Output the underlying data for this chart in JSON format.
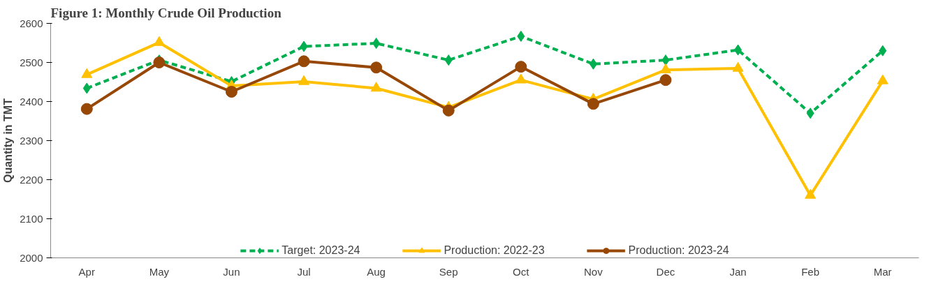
{
  "chart_data": {
    "type": "line",
    "title": "Figure 1: Monthly Crude Oil Production",
    "ylabel": "Quantity in TMT",
    "categories": [
      "Apr",
      "May",
      "Jun",
      "Jul",
      "Aug",
      "Sep",
      "Oct",
      "Nov",
      "Dec",
      "Jan",
      "Feb",
      "Mar"
    ],
    "series": [
      {
        "name": "Target: 2023-24",
        "color": "#00b050",
        "marker": "diamond",
        "line_style": "dashed",
        "values": [
          2434,
          2506,
          2451,
          2541,
          2549,
          2506,
          2567,
          2496,
          2506,
          2532,
          2370,
          2530
        ]
      },
      {
        "name": "Production: 2022-23",
        "color": "#ffc000",
        "marker": "triangle",
        "line_style": "solid",
        "values": [
          2469,
          2551,
          2440,
          2451,
          2434,
          2385,
          2455,
          2406,
          2481,
          2485,
          2160,
          2453
        ]
      },
      {
        "name": "Production: 2023-24",
        "color": "#974706",
        "marker": "circle",
        "line_style": "solid",
        "values": [
          2381,
          2500,
          2425,
          2503,
          2487,
          2377,
          2489,
          2394,
          2455,
          null,
          null,
          null
        ]
      }
    ],
    "ylim": [
      2000,
      2600
    ],
    "yticks": [
      2000,
      2100,
      2200,
      2300,
      2400,
      2500,
      2600
    ],
    "grid": false,
    "legend": "bottom"
  }
}
